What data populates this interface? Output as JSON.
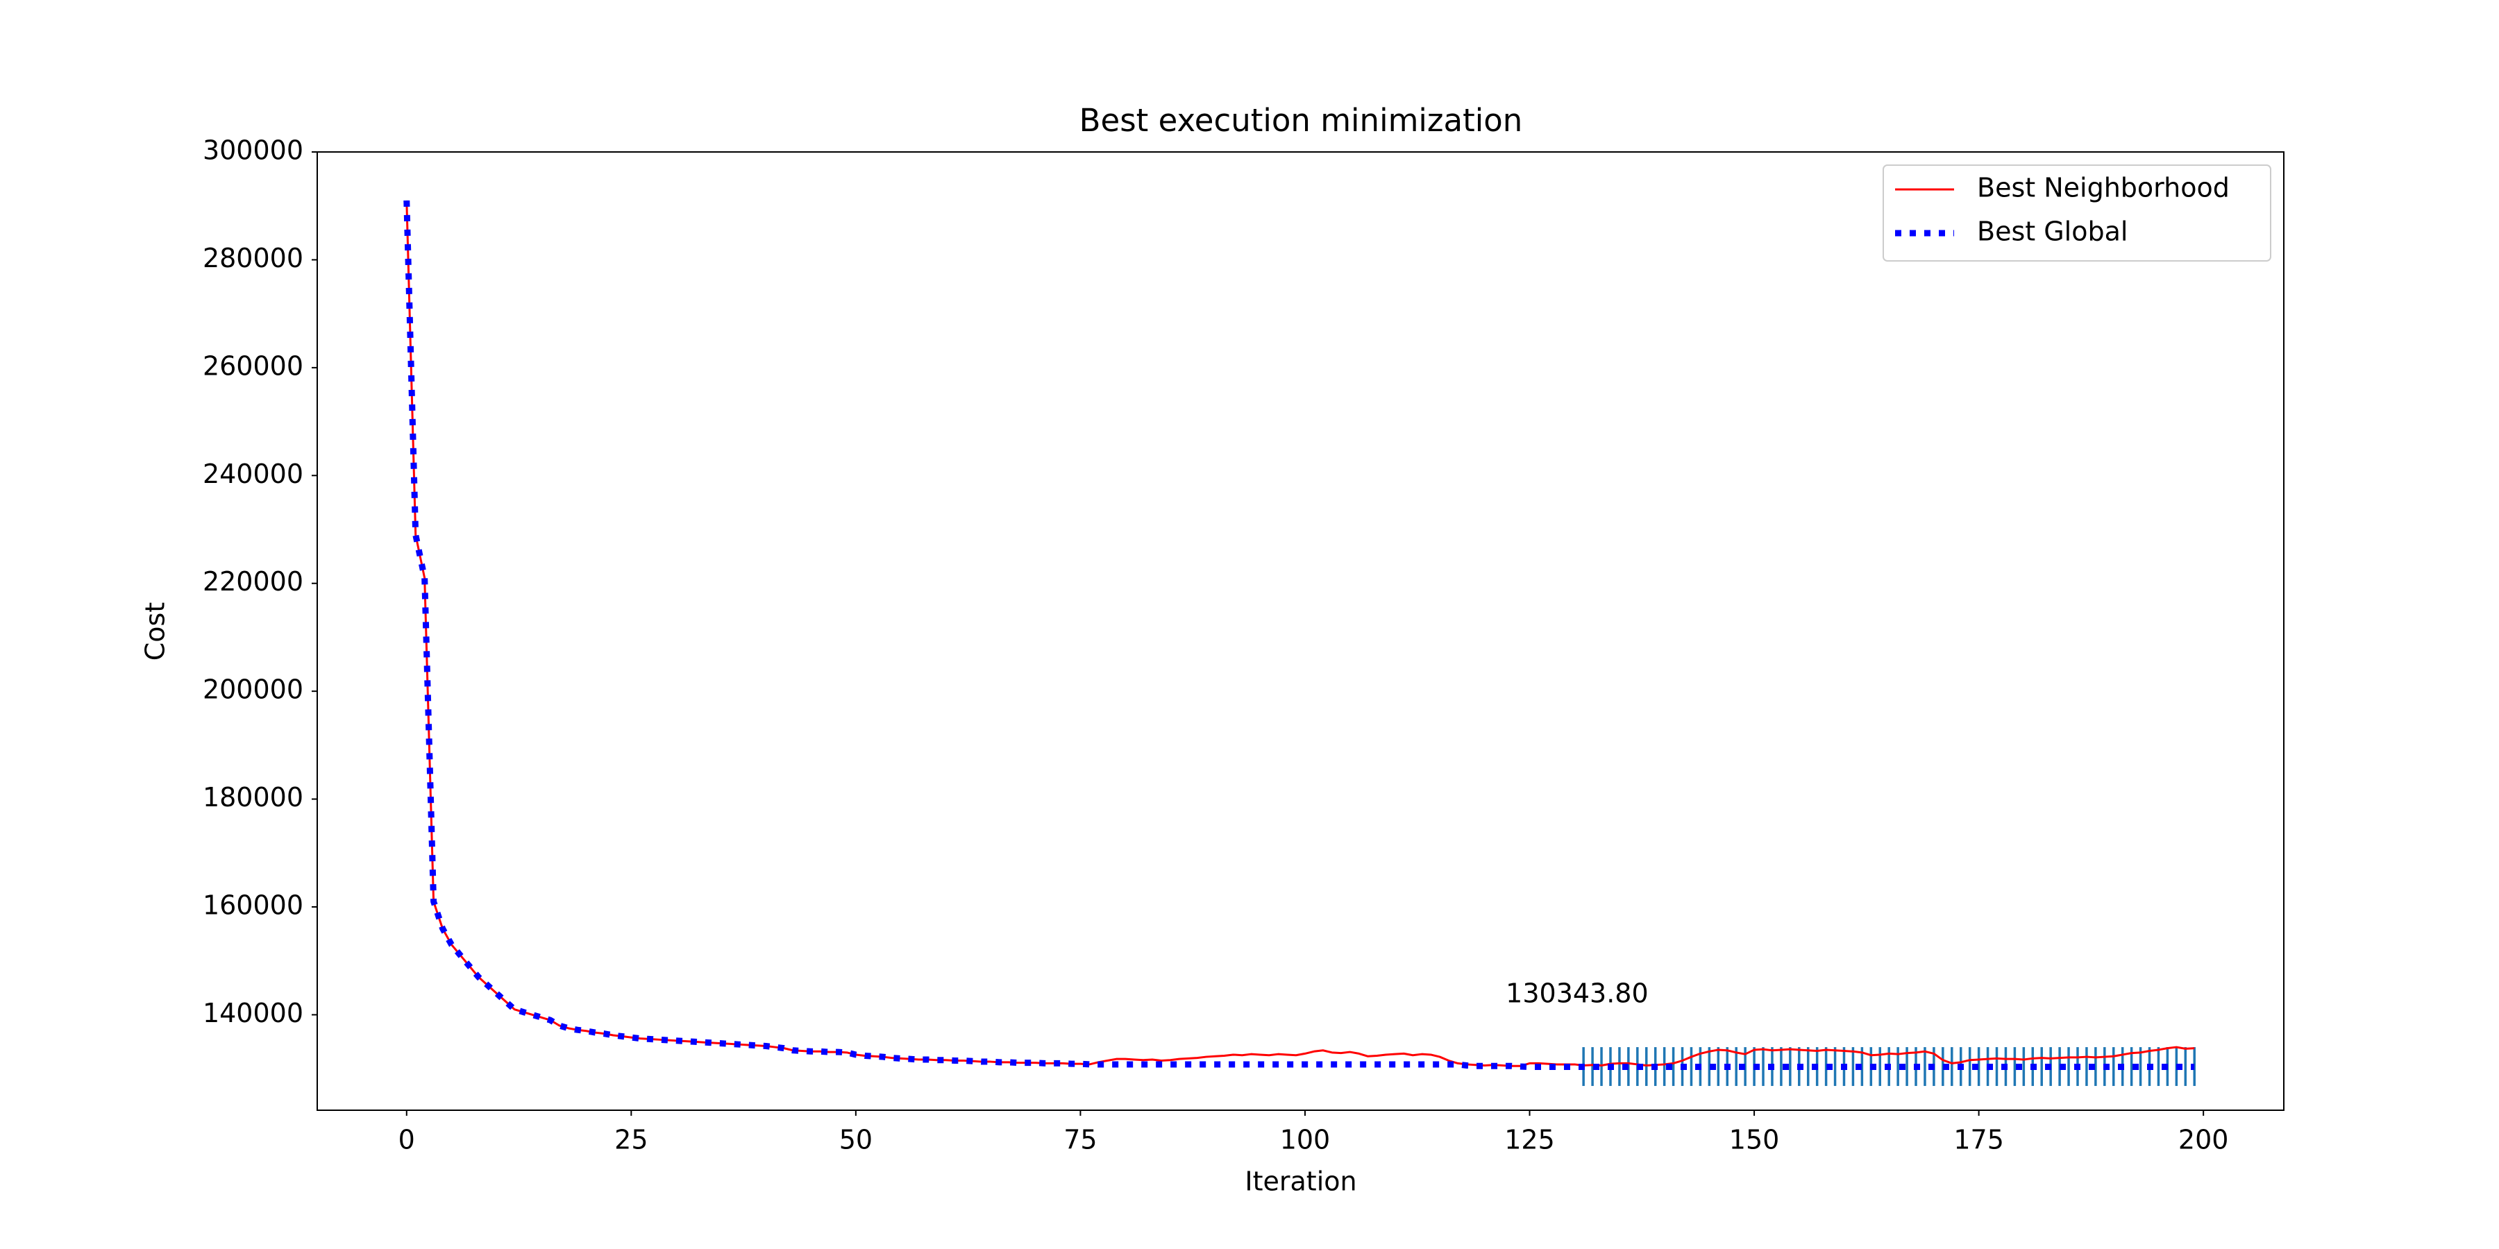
{
  "chart_data": {
    "type": "line",
    "title": "Best execution minimization",
    "xlabel": "Iteration",
    "ylabel": "Cost",
    "annotation": "130343.80",
    "xlim": [
      -9.95,
      208.95
    ],
    "ylim": [
      122300,
      300000
    ],
    "xticks": [
      0,
      25,
      50,
      75,
      100,
      125,
      150,
      175,
      200
    ],
    "yticks": [
      140000,
      160000,
      180000,
      200000,
      220000,
      240000,
      260000,
      280000,
      300000
    ],
    "grid": false,
    "legend": "upper right",
    "x": [
      0,
      1,
      2,
      3,
      4,
      5,
      6,
      7,
      8,
      9,
      10,
      11,
      12,
      13,
      14,
      15,
      16,
      17,
      18,
      19,
      20,
      21,
      22,
      23,
      24,
      25,
      26,
      27,
      28,
      29,
      30,
      31,
      32,
      33,
      34,
      35,
      36,
      37,
      38,
      39,
      40,
      41,
      42,
      43,
      44,
      45,
      46,
      47,
      48,
      49,
      50,
      51,
      52,
      53,
      54,
      55,
      56,
      57,
      58,
      59,
      60,
      61,
      62,
      63,
      64,
      65,
      66,
      67,
      68,
      69,
      70,
      71,
      72,
      73,
      74,
      75,
      76,
      77,
      78,
      79,
      80,
      81,
      82,
      83,
      84,
      85,
      86,
      87,
      88,
      89,
      90,
      91,
      92,
      93,
      94,
      95,
      96,
      97,
      98,
      99,
      100,
      101,
      102,
      103,
      104,
      105,
      106,
      107,
      108,
      109,
      110,
      111,
      112,
      113,
      114,
      115,
      116,
      117,
      118,
      119,
      120,
      121,
      122,
      123,
      124,
      125,
      126,
      127,
      128,
      129,
      130,
      131,
      132,
      133,
      134,
      135,
      136,
      137,
      138,
      139,
      140,
      141,
      142,
      143,
      144,
      145,
      146,
      147,
      148,
      149,
      150,
      151,
      152,
      153,
      154,
      155,
      156,
      157,
      158,
      159,
      160,
      161,
      162,
      163,
      164,
      165,
      166,
      167,
      168,
      169,
      170,
      171,
      172,
      173,
      174,
      175,
      176,
      177,
      178,
      179,
      180,
      181,
      182,
      183,
      184,
      185,
      186,
      187,
      188,
      189,
      190,
      191,
      192,
      193,
      194,
      195,
      196,
      197,
      198,
      199
    ],
    "series": [
      {
        "name": "Best Neighborhood",
        "color": "#ff0000",
        "linestyle": "solid",
        "values": [
          291000,
          229000,
          221000,
          161000,
          156000,
          153000,
          151000,
          149000,
          147000,
          145500,
          144000,
          142500,
          141000,
          140500,
          140000,
          139500,
          139000,
          138000,
          137500,
          137200,
          137000,
          136700,
          136500,
          136200,
          136000,
          135800,
          135600,
          135500,
          135400,
          135300,
          135200,
          135100,
          135000,
          134900,
          134800,
          134700,
          134600,
          134500,
          134400,
          134300,
          134200,
          134000,
          133800,
          133400,
          133300,
          133200,
          133200,
          133100,
          133100,
          133000,
          132600,
          132400,
          132300,
          132200,
          132000,
          131900,
          131800,
          131700,
          131700,
          131600,
          131600,
          131500,
          131500,
          131400,
          131300,
          131300,
          131200,
          131200,
          131100,
          131100,
          131100,
          131000,
          131000,
          131000,
          130900,
          130900,
          130800,
          131200,
          131500,
          131800,
          131800,
          131700,
          131600,
          131700,
          131500,
          131600,
          131800,
          131900,
          132000,
          132200,
          132300,
          132400,
          132600,
          132500,
          132700,
          132600,
          132500,
          132700,
          132600,
          132500,
          132800,
          133200,
          133400,
          133000,
          132900,
          133100,
          132800,
          132300,
          132400,
          132600,
          132700,
          132800,
          132500,
          132700,
          132600,
          132200,
          131500,
          131000,
          130800,
          130700,
          130600,
          130700,
          130600,
          130500,
          130500,
          131000,
          131000,
          130900,
          130800,
          130800,
          130800,
          130600,
          130700,
          130600,
          130900,
          131000,
          131000,
          130800,
          130600,
          130700,
          130800,
          131000,
          131500,
          132200,
          132800,
          133200,
          133500,
          133400,
          133000,
          132700,
          133500,
          133600,
          133400,
          133500,
          133600,
          133500,
          133400,
          133300,
          133500,
          133400,
          133300,
          133200,
          133000,
          132500,
          132600,
          132800,
          132700,
          132900,
          133000,
          133200,
          132800,
          131600,
          131000,
          131200,
          131600,
          131700,
          131800,
          131900,
          131800,
          131800,
          131700,
          131900,
          132000,
          131900,
          132000,
          132100,
          132100,
          132200,
          132100,
          132200,
          132300,
          132600,
          132900,
          133000,
          133300,
          133500,
          133800,
          134000,
          133700,
          133800
        ]
      },
      {
        "name": "Best Global",
        "color": "#0000ff",
        "linestyle": "dotted",
        "values": [
          291000,
          229000,
          221000,
          161000,
          156000,
          153000,
          151000,
          149000,
          147000,
          145500,
          144000,
          142500,
          141000,
          140500,
          140000,
          139500,
          139000,
          138000,
          137500,
          137200,
          137000,
          136700,
          136500,
          136200,
          136000,
          135800,
          135600,
          135500,
          135400,
          135300,
          135200,
          135100,
          135000,
          134900,
          134800,
          134700,
          134600,
          134500,
          134400,
          134300,
          134200,
          134000,
          133800,
          133400,
          133300,
          133200,
          133200,
          133100,
          133100,
          133000,
          132600,
          132400,
          132300,
          132200,
          132000,
          131900,
          131800,
          131700,
          131700,
          131600,
          131600,
          131500,
          131500,
          131400,
          131300,
          131300,
          131200,
          131200,
          131100,
          131100,
          131100,
          131000,
          131000,
          131000,
          130900,
          130900,
          130800,
          130800,
          130800,
          130800,
          130800,
          130800,
          130800,
          130800,
          130800,
          130800,
          130800,
          130800,
          130800,
          130800,
          130800,
          130800,
          130800,
          130800,
          130800,
          130800,
          130800,
          130800,
          130800,
          130800,
          130800,
          130800,
          130800,
          130800,
          130800,
          130800,
          130800,
          130800,
          130800,
          130800,
          130800,
          130800,
          130800,
          130800,
          130800,
          130800,
          130800,
          130800,
          130600,
          130500,
          130500,
          130500,
          130500,
          130500,
          130400,
          130343.8,
          130343.8,
          130343.8,
          130343.8,
          130343.8,
          130343.8,
          130343.8,
          130343.8,
          130343.8,
          130343.8,
          130343.8,
          130343.8,
          130343.8,
          130343.8,
          130343.8,
          130343.8,
          130343.8,
          130343.8,
          130343.8,
          130343.8,
          130343.8,
          130343.8,
          130343.8,
          130343.8,
          130343.8,
          130343.8,
          130343.8,
          130343.8,
          130343.8,
          130343.8,
          130343.8,
          130343.8,
          130343.8,
          130343.8,
          130343.8,
          130343.8,
          130343.8,
          130343.8,
          130343.8,
          130343.8,
          130343.8,
          130343.8,
          130343.8,
          130343.8,
          130343.8,
          130343.8,
          130343.8,
          130343.8,
          130343.8,
          130343.8,
          130343.8,
          130343.8,
          130343.8,
          130343.8,
          130343.8,
          130343.8,
          130343.8,
          130343.8,
          130343.8,
          130343.8,
          130343.8,
          130343.8,
          130343.8,
          130343.8,
          130343.8,
          130343.8,
          130343.8,
          130343.8,
          130343.8,
          130343.8,
          130343.8,
          130343.8,
          130343.8,
          130343.8,
          130343.8
        ]
      }
    ],
    "vlines": {
      "color": "#1f77b4",
      "ymin": 126800,
      "ymax": 134000,
      "x": [
        131,
        132,
        133,
        134,
        135,
        136,
        137,
        138,
        139,
        140,
        141,
        142,
        143,
        144,
        145,
        146,
        147,
        148,
        149,
        150,
        151,
        152,
        153,
        154,
        155,
        156,
        157,
        158,
        159,
        160,
        161,
        162,
        163,
        164,
        165,
        166,
        167,
        168,
        169,
        170,
        171,
        172,
        173,
        174,
        175,
        176,
        177,
        178,
        179,
        180,
        181,
        182,
        183,
        184,
        185,
        186,
        187,
        188,
        189,
        190,
        191,
        192,
        193,
        194,
        195,
        196,
        197,
        198,
        199
      ]
    }
  }
}
